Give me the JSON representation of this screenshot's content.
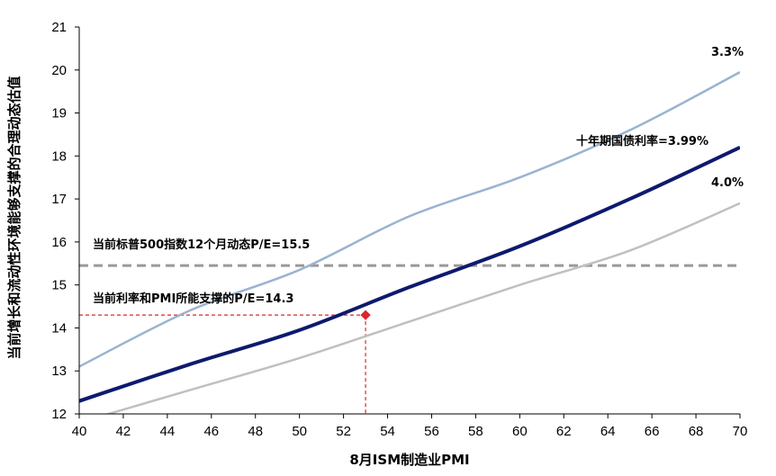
{
  "chart_data": {
    "type": "line",
    "xlabel": "8月ISM制造业PMI",
    "ylabel": "当前增长和流动性环境能够支撑的合理动态估值",
    "xlim": [
      40,
      70
    ],
    "ylim": [
      12,
      21
    ],
    "xticks": [
      "40",
      "42",
      "44",
      "46",
      "48",
      "50",
      "52",
      "54",
      "56",
      "58",
      "60",
      "62",
      "64",
      "66",
      "68",
      "70"
    ],
    "yticks": [
      "12",
      "13",
      "14",
      "15",
      "16",
      "17",
      "18",
      "19",
      "20",
      "21"
    ],
    "grid": false,
    "x": [
      40,
      45,
      50,
      55,
      60,
      65,
      70
    ],
    "series": [
      {
        "name": "3.3%",
        "color": "#9ab3d1",
        "width": 2.5,
        "values": [
          13.1,
          14.4,
          15.35,
          16.6,
          17.5,
          18.6,
          19.95
        ]
      },
      {
        "name": "十年期国债利率=3.99%",
        "color": "#0d1a6e",
        "width": 4,
        "values": [
          12.3,
          13.15,
          13.95,
          14.95,
          15.9,
          17.0,
          18.2
        ]
      },
      {
        "name": "4.0%",
        "color": "#c0c0c0",
        "width": 2.5,
        "values": [
          11.8,
          12.55,
          13.3,
          14.15,
          15.0,
          15.8,
          16.9
        ]
      }
    ],
    "hline": {
      "label": "当前标普500指数12个月动态P/E=15.5",
      "value": 15.45,
      "color": "#999999"
    },
    "point": {
      "label": "当前利率和PMI所能支撑的P/E=14.3",
      "x": 53,
      "y": 14.3,
      "color": "#d9272e"
    }
  }
}
